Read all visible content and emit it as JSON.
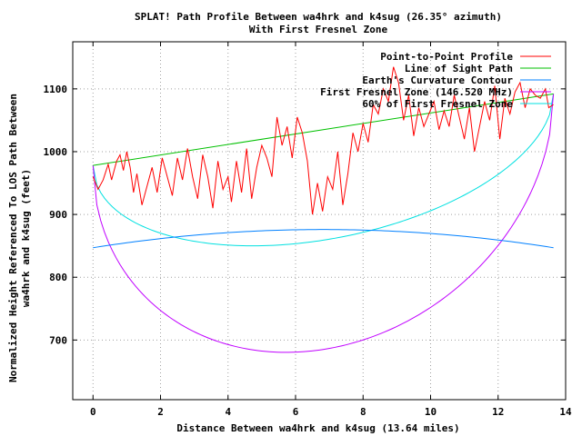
{
  "chart_data": {
    "type": "line",
    "title": "SPLAT! Path Profile Between wa4hrk and k4sug (26.35° azimuth)",
    "subtitle": "With First Fresnel Zone",
    "xlabel": "Distance Between wa4hrk and k4sug (13.64 miles)",
    "ylabel": "Normalized Height Referenced To LOS Path Between wa4hrk and k4sug (feet)",
    "ylabel_lines": [
      "Normalized Height Referenced To LOS Path Between",
      "wa4hrk and k4sug (feet)"
    ],
    "xlim": [
      -0.6,
      14
    ],
    "ylim": [
      605,
      1175
    ],
    "xticks": [
      0,
      2,
      4,
      6,
      8,
      10,
      12,
      14
    ],
    "xtick_labels": [
      "0",
      "2",
      "4",
      "6",
      "8",
      "10",
      "12",
      "14"
    ],
    "yticks": [
      700,
      800,
      900,
      1000,
      1100
    ],
    "ytick_labels": [
      "700",
      "800",
      "900",
      "1000",
      "1100"
    ],
    "grid": true,
    "legend_position": "top-right",
    "path_length_miles": 13.64,
    "series": [
      {
        "name": "Point-to-Point Profile",
        "color": "#ff0000",
        "x": [
          0,
          0.15,
          0.3,
          0.45,
          0.55,
          0.7,
          0.8,
          0.9,
          1.0,
          1.1,
          1.2,
          1.3,
          1.45,
          1.6,
          1.75,
          1.9,
          2.05,
          2.2,
          2.35,
          2.5,
          2.65,
          2.8,
          2.95,
          3.1,
          3.25,
          3.4,
          3.55,
          3.7,
          3.85,
          4.0,
          4.1,
          4.25,
          4.4,
          4.55,
          4.7,
          4.85,
          5.0,
          5.15,
          5.3,
          5.45,
          5.6,
          5.75,
          5.9,
          6.05,
          6.2,
          6.35,
          6.5,
          6.65,
          6.8,
          6.95,
          7.1,
          7.25,
          7.4,
          7.55,
          7.7,
          7.85,
          8.0,
          8.15,
          8.3,
          8.45,
          8.6,
          8.75,
          8.9,
          9.05,
          9.2,
          9.35,
          9.5,
          9.65,
          9.8,
          9.95,
          10.1,
          10.25,
          10.4,
          10.55,
          10.7,
          10.85,
          11.0,
          11.15,
          11.3,
          11.45,
          11.6,
          11.75,
          11.9,
          12.05,
          12.2,
          12.35,
          12.5,
          12.65,
          12.8,
          12.95,
          13.1,
          13.25,
          13.4,
          13.5,
          13.64
        ],
        "values": [
          960,
          940,
          955,
          980,
          955,
          985,
          995,
          970,
          1000,
          975,
          935,
          965,
          915,
          945,
          975,
          935,
          990,
          960,
          930,
          990,
          955,
          1005,
          960,
          925,
          995,
          960,
          910,
          985,
          940,
          960,
          920,
          985,
          935,
          1005,
          925,
          975,
          1010,
          990,
          960,
          1055,
          1010,
          1040,
          990,
          1055,
          1030,
          985,
          900,
          950,
          905,
          960,
          940,
          1000,
          915,
          965,
          1030,
          1000,
          1045,
          1015,
          1075,
          1060,
          1100,
          1080,
          1135,
          1110,
          1050,
          1090,
          1025,
          1070,
          1040,
          1060,
          1080,
          1035,
          1065,
          1040,
          1090,
          1055,
          1020,
          1070,
          1000,
          1040,
          1080,
          1050,
          1105,
          1020,
          1085,
          1060,
          1095,
          1110,
          1070,
          1100,
          1090,
          1085,
          1100,
          1070,
          1075
        ]
      },
      {
        "name": "Line of Sight Path",
        "color": "#00c000",
        "x": [
          0,
          13.64
        ],
        "values": [
          978,
          1092
        ]
      },
      {
        "name": "Earth's Curvature Contour",
        "color": "#0080ff",
        "curve": "parabola",
        "x": [
          0,
          6.82,
          13.64
        ],
        "values": [
          847,
          876,
          847
        ]
      },
      {
        "name": "First Fresnel Zone (146.520 MHz)",
        "color": "#c000ff",
        "curve": "ellipse",
        "x": [
          0,
          6.82,
          13.64
        ],
        "values": [
          978,
          685,
          1092
        ]
      },
      {
        "name": "60% of First Fresnel Zone",
        "color": "#00e0e0",
        "curve": "ellipse",
        "x": [
          0,
          6.82,
          13.64
        ],
        "values": [
          978,
          859,
          1092
        ]
      }
    ]
  }
}
